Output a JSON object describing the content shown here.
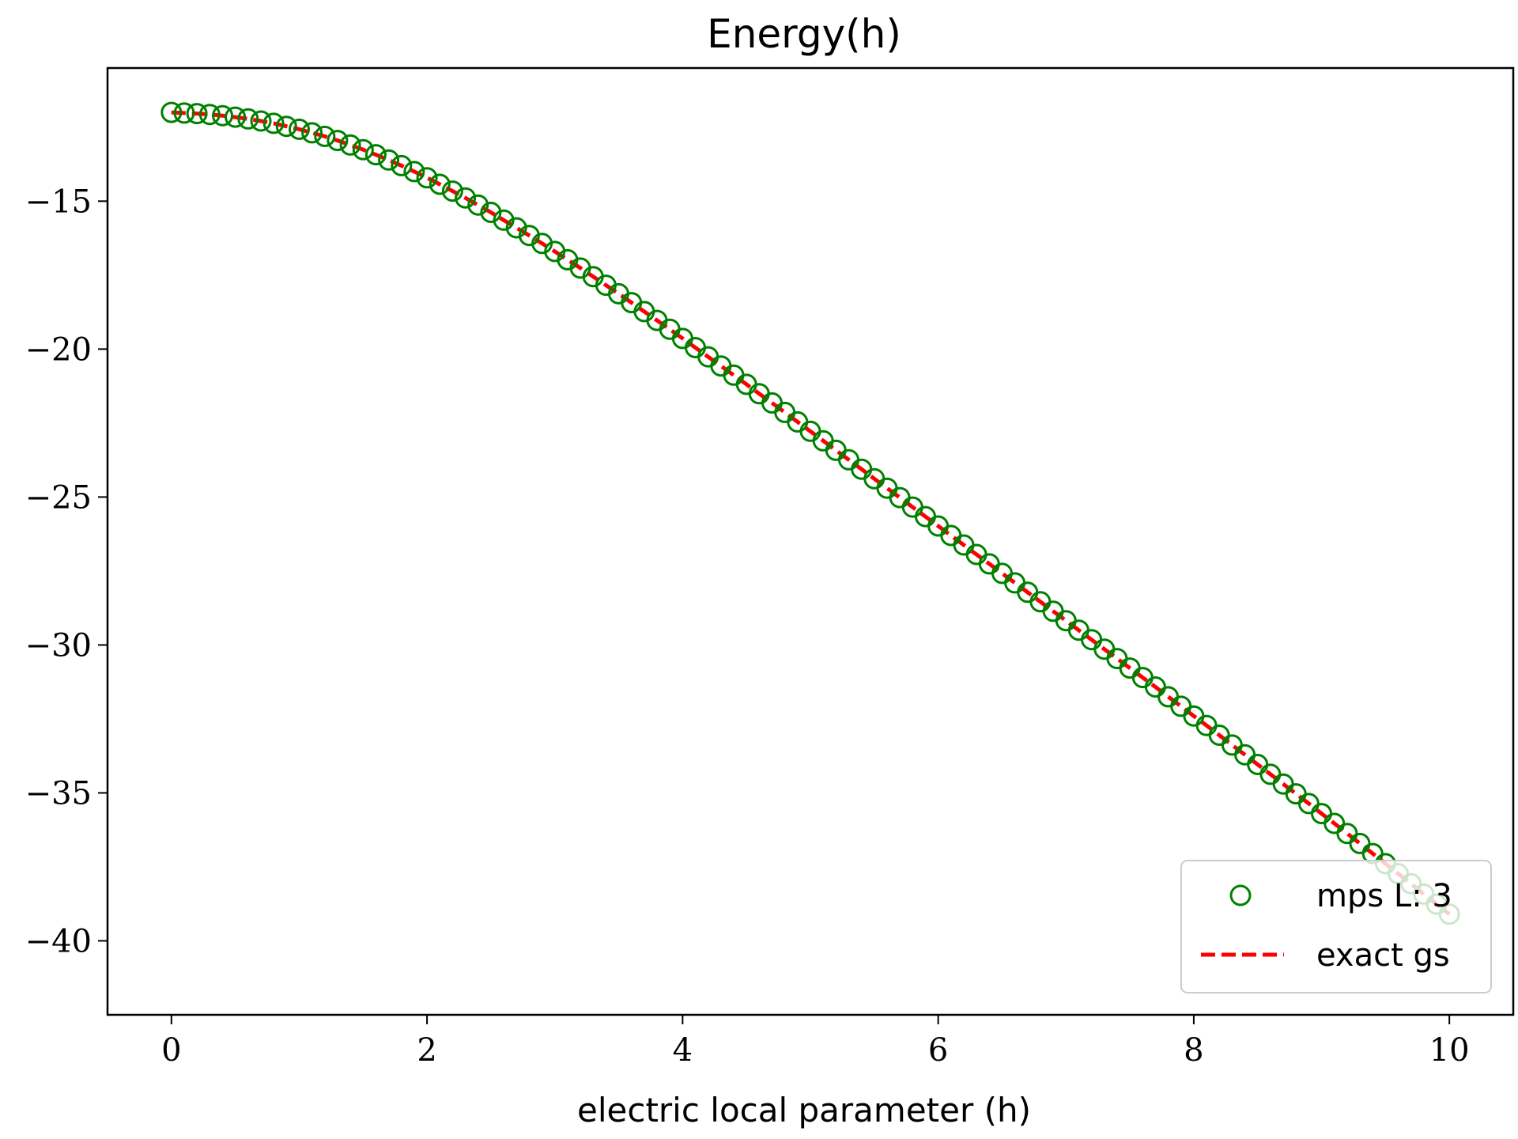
{
  "chart_data": {
    "type": "line",
    "title": "Energy(h)",
    "xlabel": "electric local parameter (h)",
    "ylabel": "",
    "xlim": [
      -0.5,
      10.5
    ],
    "ylim": [
      -42.5,
      -10.5
    ],
    "xticks": [
      0,
      2,
      4,
      6,
      8,
      10
    ],
    "yticks": [
      -15,
      -20,
      -25,
      -30,
      -35,
      -40
    ],
    "xtick_labels": [
      "0",
      "2",
      "4",
      "6",
      "8",
      "10"
    ],
    "ytick_labels": [
      "−15",
      "−20",
      "−25",
      "−30",
      "−35",
      "−40"
    ],
    "legend_position": "lower right",
    "grid": false,
    "x": [
      0.0,
      0.1,
      0.2,
      0.3,
      0.4,
      0.5,
      0.6,
      0.7,
      0.8,
      0.9,
      1.0,
      1.1,
      1.2,
      1.3,
      1.4,
      1.5,
      1.6,
      1.7,
      1.8,
      1.9,
      2.0,
      2.1,
      2.2,
      2.3,
      2.4,
      2.5,
      2.6,
      2.7,
      2.8,
      2.9,
      3.0,
      3.1,
      3.2,
      3.3,
      3.4,
      3.5,
      3.6,
      3.7,
      3.8,
      3.9,
      4.0,
      4.1,
      4.2,
      4.3,
      4.4,
      4.5,
      4.6,
      4.7,
      4.8,
      4.9,
      5.0,
      5.1,
      5.2,
      5.3,
      5.4,
      5.5,
      5.6,
      5.7,
      5.8,
      5.9,
      6.0,
      6.1,
      6.2,
      6.3,
      6.4,
      6.5,
      6.6,
      6.7,
      6.8,
      6.9,
      7.0,
      7.1,
      7.2,
      7.3,
      7.4,
      7.5,
      7.6,
      7.7,
      7.8,
      7.9,
      8.0,
      8.1,
      8.2,
      8.3,
      8.4,
      8.5,
      8.6,
      8.7,
      8.8,
      8.9,
      9.0,
      9.1,
      9.2,
      9.3,
      9.4,
      9.5,
      9.6,
      9.7,
      9.8,
      9.9,
      10.0
    ],
    "series": [
      {
        "name": "mps L: 3",
        "style": "markers",
        "marker": "open-circle",
        "color": "#008000",
        "values": [
          -12.0,
          -12.02,
          -12.04,
          -12.07,
          -12.11,
          -12.16,
          -12.22,
          -12.29,
          -12.37,
          -12.47,
          -12.57,
          -12.69,
          -12.81,
          -12.95,
          -13.1,
          -13.26,
          -13.43,
          -13.61,
          -13.8,
          -14.0,
          -14.21,
          -14.43,
          -14.66,
          -14.89,
          -15.13,
          -15.38,
          -15.64,
          -15.9,
          -16.16,
          -16.43,
          -16.7,
          -16.98,
          -17.26,
          -17.55,
          -17.84,
          -18.13,
          -18.43,
          -18.73,
          -19.03,
          -19.33,
          -19.64,
          -19.95,
          -20.26,
          -20.57,
          -20.88,
          -21.19,
          -21.51,
          -21.82,
          -22.14,
          -22.46,
          -22.78,
          -23.1,
          -23.42,
          -23.74,
          -24.06,
          -24.38,
          -24.7,
          -25.02,
          -25.34,
          -25.66,
          -25.98,
          -26.3,
          -26.62,
          -26.94,
          -27.26,
          -27.58,
          -27.9,
          -28.22,
          -28.54,
          -28.86,
          -29.18,
          -29.5,
          -29.82,
          -30.14,
          -30.46,
          -30.78,
          -31.1,
          -31.42,
          -31.75,
          -32.07,
          -32.4,
          -32.72,
          -33.05,
          -33.38,
          -33.71,
          -34.04,
          -34.37,
          -34.7,
          -35.03,
          -35.36,
          -35.7,
          -36.03,
          -36.37,
          -36.71,
          -37.05,
          -37.39,
          -37.73,
          -38.07,
          -38.42,
          -38.76,
          -39.1
        ]
      },
      {
        "name": "exact gs",
        "style": "dashed-line",
        "color": "#ff0000",
        "values": [
          -12.0,
          -12.02,
          -12.04,
          -12.07,
          -12.11,
          -12.16,
          -12.22,
          -12.29,
          -12.37,
          -12.47,
          -12.57,
          -12.69,
          -12.81,
          -12.95,
          -13.1,
          -13.26,
          -13.43,
          -13.61,
          -13.8,
          -14.0,
          -14.21,
          -14.43,
          -14.66,
          -14.89,
          -15.13,
          -15.38,
          -15.64,
          -15.9,
          -16.16,
          -16.43,
          -16.7,
          -16.98,
          -17.26,
          -17.55,
          -17.84,
          -18.13,
          -18.43,
          -18.73,
          -19.03,
          -19.33,
          -19.64,
          -19.95,
          -20.26,
          -20.57,
          -20.88,
          -21.19,
          -21.51,
          -21.82,
          -22.14,
          -22.46,
          -22.78,
          -23.1,
          -23.42,
          -23.74,
          -24.06,
          -24.38,
          -24.7,
          -25.02,
          -25.34,
          -25.66,
          -25.98,
          -26.3,
          -26.62,
          -26.94,
          -27.26,
          -27.58,
          -27.9,
          -28.22,
          -28.54,
          -28.86,
          -29.18,
          -29.5,
          -29.82,
          -30.14,
          -30.46,
          -30.78,
          -31.1,
          -31.42,
          -31.75,
          -32.07,
          -32.4,
          -32.72,
          -33.05,
          -33.38,
          -33.71,
          -34.04,
          -34.37,
          -34.7,
          -35.03,
          -35.36,
          -35.7,
          -36.03,
          -36.37,
          -36.71,
          -37.05,
          -37.39,
          -37.73,
          -38.07,
          -38.42,
          -38.76,
          -39.1
        ]
      }
    ]
  }
}
